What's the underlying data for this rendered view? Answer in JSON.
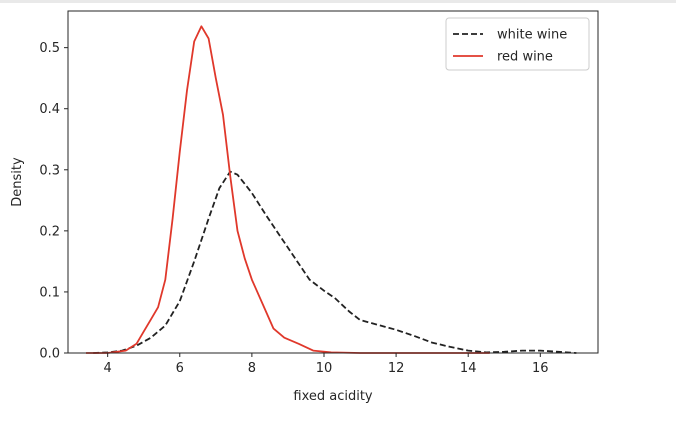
{
  "chart_data": {
    "type": "line",
    "title": "",
    "xlabel": "fixed acidity",
    "ylabel": "Density",
    "xlim": [
      2.9,
      17.6
    ],
    "ylim": [
      0.0,
      0.56
    ],
    "x_ticks": [
      4,
      6,
      8,
      10,
      12,
      14,
      16
    ],
    "y_ticks": [
      0.0,
      0.1,
      0.2,
      0.3,
      0.4,
      0.5
    ],
    "x_tick_labels": [
      "4",
      "6",
      "8",
      "10",
      "12",
      "14",
      "16"
    ],
    "y_tick_labels": [
      "0.0",
      "0.1",
      "0.2",
      "0.3",
      "0.4",
      "0.5"
    ],
    "grid": false,
    "legend_position": "top-right",
    "series": [
      {
        "name": "white wine",
        "color": "#222222",
        "style": "dashed",
        "points": [
          [
            3.6,
            0.0
          ],
          [
            4.0,
            0.001
          ],
          [
            4.4,
            0.004
          ],
          [
            4.8,
            0.012
          ],
          [
            5.2,
            0.025
          ],
          [
            5.6,
            0.045
          ],
          [
            6.0,
            0.085
          ],
          [
            6.4,
            0.15
          ],
          [
            6.8,
            0.22
          ],
          [
            7.1,
            0.27
          ],
          [
            7.4,
            0.297
          ],
          [
            7.6,
            0.292
          ],
          [
            8.0,
            0.262
          ],
          [
            8.4,
            0.225
          ],
          [
            8.8,
            0.19
          ],
          [
            9.2,
            0.155
          ],
          [
            9.6,
            0.12
          ],
          [
            10.0,
            0.102
          ],
          [
            10.3,
            0.09
          ],
          [
            10.7,
            0.068
          ],
          [
            11.0,
            0.054
          ],
          [
            11.5,
            0.046
          ],
          [
            12.0,
            0.038
          ],
          [
            12.5,
            0.028
          ],
          [
            13.0,
            0.017
          ],
          [
            13.5,
            0.01
          ],
          [
            14.0,
            0.004
          ],
          [
            14.5,
            0.001
          ],
          [
            15.0,
            0.002
          ],
          [
            15.5,
            0.004
          ],
          [
            16.0,
            0.004
          ],
          [
            16.5,
            0.002
          ],
          [
            17.0,
            0.0
          ]
        ]
      },
      {
        "name": "red wine",
        "color": "#e0382b",
        "style": "solid",
        "points": [
          [
            3.4,
            0.0
          ],
          [
            4.0,
            0.0
          ],
          [
            4.5,
            0.004
          ],
          [
            4.8,
            0.015
          ],
          [
            5.0,
            0.035
          ],
          [
            5.2,
            0.055
          ],
          [
            5.4,
            0.075
          ],
          [
            5.6,
            0.12
          ],
          [
            5.8,
            0.22
          ],
          [
            6.0,
            0.33
          ],
          [
            6.2,
            0.43
          ],
          [
            6.4,
            0.51
          ],
          [
            6.6,
            0.535
          ],
          [
            6.8,
            0.515
          ],
          [
            7.0,
            0.45
          ],
          [
            7.2,
            0.39
          ],
          [
            7.4,
            0.29
          ],
          [
            7.6,
            0.2
          ],
          [
            7.8,
            0.155
          ],
          [
            8.0,
            0.12
          ],
          [
            8.3,
            0.08
          ],
          [
            8.6,
            0.04
          ],
          [
            8.9,
            0.025
          ],
          [
            9.3,
            0.015
          ],
          [
            9.7,
            0.004
          ],
          [
            10.2,
            0.001
          ],
          [
            11.0,
            0.0
          ],
          [
            12.0,
            0.0
          ],
          [
            13.0,
            0.0
          ],
          [
            14.0,
            0.0
          ],
          [
            14.6,
            0.0
          ]
        ]
      }
    ]
  }
}
